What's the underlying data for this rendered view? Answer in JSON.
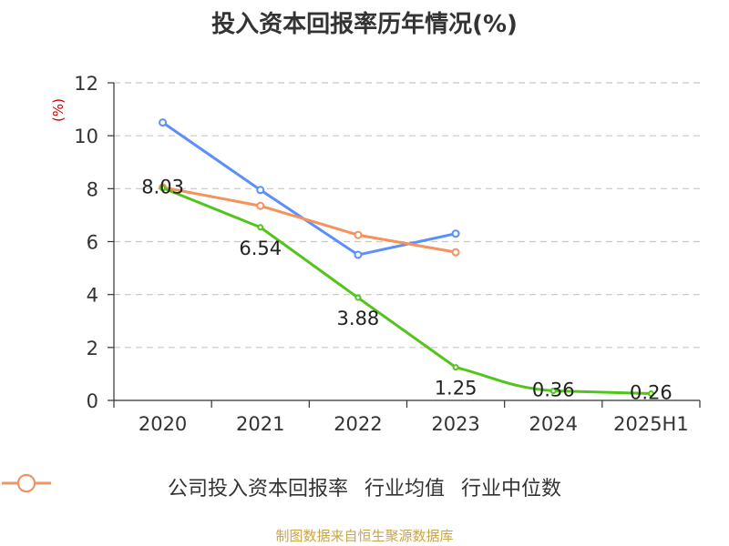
{
  "title": "投入资本回报率历年情况(%)",
  "source_text": "制图数据来自恒生聚源数据库",
  "chart_data": {
    "type": "line",
    "title": "投入资本回报率历年情况(%)",
    "ylabel": "(%)",
    "xlabel": "",
    "categories": [
      "2020",
      "2021",
      "2022",
      "2023",
      "2024",
      "2025H1"
    ],
    "ylim": [
      0,
      12
    ],
    "yticks": [
      0,
      2,
      4,
      6,
      8,
      10,
      12
    ],
    "grid": "horizontal-dashed",
    "legend_position": "bottom",
    "series": [
      {
        "name": "公司投入资本回报率",
        "color": "#52c41a",
        "values": [
          8.03,
          6.54,
          3.88,
          1.25,
          0.36,
          0.26
        ],
        "labels": [
          "8.03",
          "6.54",
          "3.88",
          "1.25",
          "0.36",
          "0.26"
        ]
      },
      {
        "name": "行业均值",
        "color": "#5b8ff9",
        "values": [
          10.5,
          7.95,
          5.5,
          6.3,
          null,
          null
        ]
      },
      {
        "name": "行业中位数",
        "color": "#f6925c",
        "values": [
          8.05,
          7.35,
          6.25,
          5.6,
          null,
          null
        ]
      }
    ]
  }
}
